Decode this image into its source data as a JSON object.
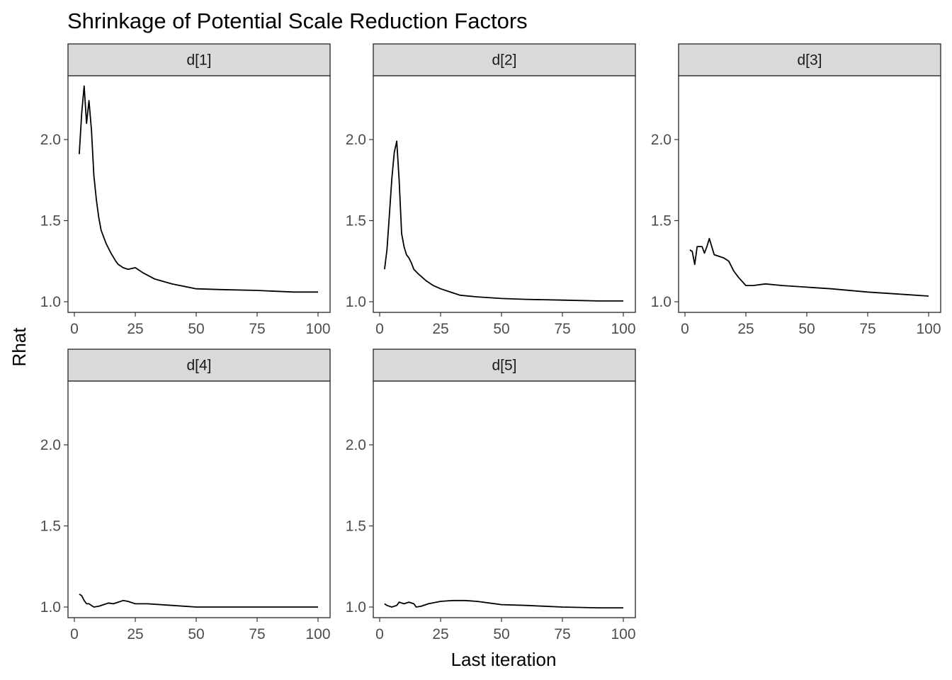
{
  "chart_data": {
    "type": "line",
    "title": "Shrinkage of Potential Scale Reduction Factors",
    "xlabel": "Last iteration",
    "ylabel": "Rhat",
    "xlim": [
      0,
      100
    ],
    "ylim": [
      1.0,
      2.4
    ],
    "xticks": [
      0,
      25,
      50,
      75,
      100
    ],
    "xtick_labels": [
      "0",
      "25",
      "50",
      "75",
      "100"
    ],
    "yticks": [
      1.0,
      1.5,
      2.0
    ],
    "ytick_labels": [
      "1.0",
      "1.5",
      "2.0"
    ],
    "grid": false,
    "layout": "facet-wrap 2 rows x 3 columns, shared axes",
    "line_color": "#000000",
    "strip_color": "#d9d9d9",
    "panels": [
      {
        "label": "d[1]",
        "points": [
          [
            2,
            1.91
          ],
          [
            3,
            2.16
          ],
          [
            4,
            2.33
          ],
          [
            5,
            2.1
          ],
          [
            6,
            2.24
          ],
          [
            7,
            2.06
          ],
          [
            8,
            1.78
          ],
          [
            9,
            1.63
          ],
          [
            10,
            1.52
          ],
          [
            11,
            1.44
          ],
          [
            13,
            1.36
          ],
          [
            15,
            1.3
          ],
          [
            17,
            1.25
          ],
          [
            18,
            1.23
          ],
          [
            20,
            1.21
          ],
          [
            22,
            1.2
          ],
          [
            25,
            1.21
          ],
          [
            28,
            1.18
          ],
          [
            33,
            1.14
          ],
          [
            40,
            1.11
          ],
          [
            50,
            1.08
          ],
          [
            60,
            1.075
          ],
          [
            75,
            1.07
          ],
          [
            90,
            1.06
          ],
          [
            100,
            1.06
          ]
        ]
      },
      {
        "label": "d[2]",
        "points": [
          [
            2,
            1.2
          ],
          [
            3,
            1.32
          ],
          [
            4,
            1.54
          ],
          [
            5,
            1.76
          ],
          [
            6,
            1.92
          ],
          [
            7,
            1.99
          ],
          [
            8,
            1.75
          ],
          [
            9,
            1.42
          ],
          [
            10,
            1.34
          ],
          [
            11,
            1.29
          ],
          [
            12,
            1.27
          ],
          [
            13,
            1.24
          ],
          [
            14,
            1.2
          ],
          [
            16,
            1.17
          ],
          [
            19,
            1.13
          ],
          [
            22,
            1.1
          ],
          [
            25,
            1.08
          ],
          [
            30,
            1.055
          ],
          [
            33,
            1.04
          ],
          [
            40,
            1.03
          ],
          [
            50,
            1.02
          ],
          [
            60,
            1.015
          ],
          [
            75,
            1.01
          ],
          [
            90,
            1.005
          ],
          [
            100,
            1.005
          ]
        ]
      },
      {
        "label": "d[3]",
        "points": [
          [
            2,
            1.32
          ],
          [
            3,
            1.31
          ],
          [
            4,
            1.23
          ],
          [
            5,
            1.34
          ],
          [
            6,
            1.34
          ],
          [
            7,
            1.34
          ],
          [
            8,
            1.3
          ],
          [
            9,
            1.34
          ],
          [
            10,
            1.39
          ],
          [
            12,
            1.29
          ],
          [
            14,
            1.28
          ],
          [
            16,
            1.27
          ],
          [
            18,
            1.25
          ],
          [
            20,
            1.19
          ],
          [
            22,
            1.15
          ],
          [
            25,
            1.1
          ],
          [
            28,
            1.1
          ],
          [
            33,
            1.11
          ],
          [
            40,
            1.1
          ],
          [
            50,
            1.09
          ],
          [
            60,
            1.08
          ],
          [
            75,
            1.06
          ],
          [
            90,
            1.045
          ],
          [
            100,
            1.035
          ]
        ]
      },
      {
        "label": "d[4]",
        "points": [
          [
            2,
            1.08
          ],
          [
            3,
            1.07
          ],
          [
            4,
            1.04
          ],
          [
            5,
            1.02
          ],
          [
            6,
            1.02
          ],
          [
            7,
            1.01
          ],
          [
            8,
            1.0
          ],
          [
            10,
            1.005
          ],
          [
            12,
            1.015
          ],
          [
            14,
            1.025
          ],
          [
            16,
            1.02
          ],
          [
            18,
            1.03
          ],
          [
            20,
            1.04
          ],
          [
            22,
            1.035
          ],
          [
            25,
            1.02
          ],
          [
            30,
            1.02
          ],
          [
            40,
            1.01
          ],
          [
            50,
            1.0
          ],
          [
            60,
            1.0
          ],
          [
            75,
            1.0
          ],
          [
            90,
            1.0
          ],
          [
            100,
            1.0
          ]
        ]
      },
      {
        "label": "d[5]",
        "points": [
          [
            2,
            1.02
          ],
          [
            3,
            1.01
          ],
          [
            5,
            1.0
          ],
          [
            7,
            1.01
          ],
          [
            8,
            1.03
          ],
          [
            9,
            1.025
          ],
          [
            10,
            1.02
          ],
          [
            12,
            1.03
          ],
          [
            14,
            1.02
          ],
          [
            15,
            1.0
          ],
          [
            17,
            1.005
          ],
          [
            20,
            1.02
          ],
          [
            25,
            1.035
          ],
          [
            30,
            1.04
          ],
          [
            35,
            1.04
          ],
          [
            40,
            1.035
          ],
          [
            45,
            1.025
          ],
          [
            50,
            1.015
          ],
          [
            60,
            1.01
          ],
          [
            75,
            1.0
          ],
          [
            90,
            0.995
          ],
          [
            100,
            0.995
          ]
        ]
      }
    ]
  }
}
